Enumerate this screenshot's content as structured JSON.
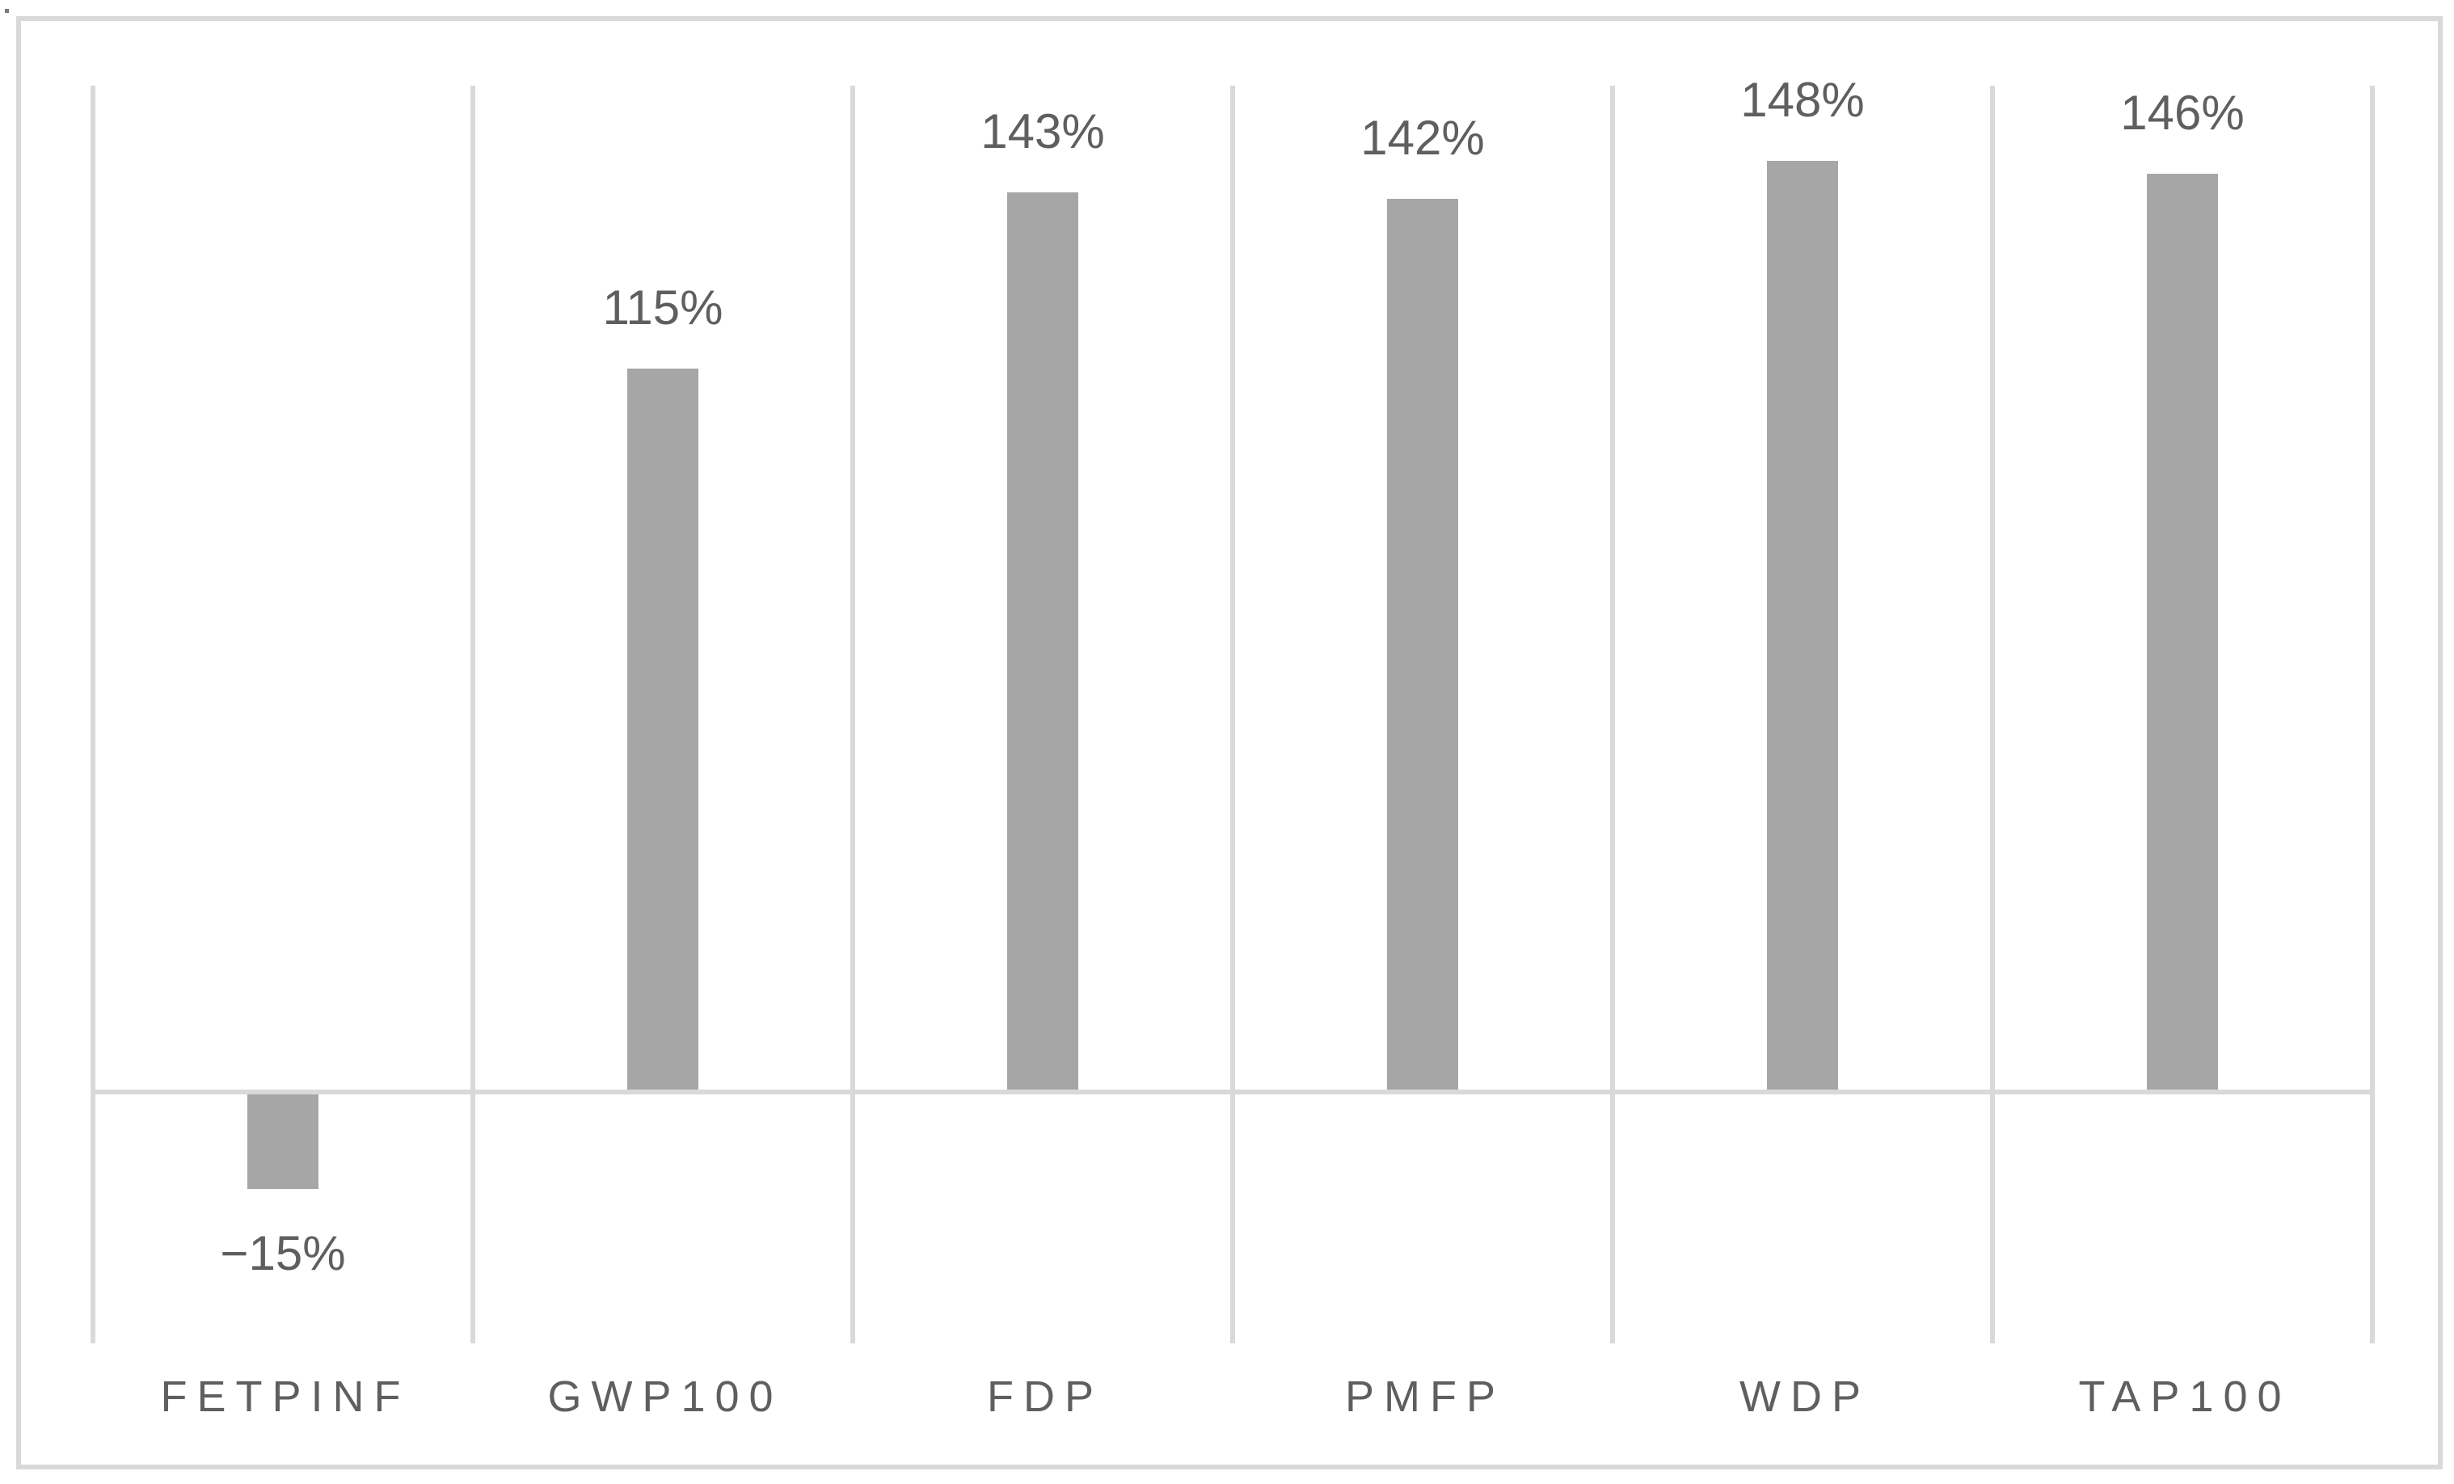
{
  "chart_data": {
    "type": "bar",
    "categories": [
      "FETPINF",
      "GWP100",
      "FDP",
      "PMFP",
      "WDP",
      "TAP100"
    ],
    "values": [
      -15,
      115,
      143,
      142,
      148,
      146
    ],
    "data_labels": [
      "−15%",
      "115%",
      "143%",
      "142%",
      "148%",
      "146%"
    ],
    "title": "",
    "xlabel": "",
    "ylabel": "",
    "ylim": [
      -40,
      160
    ],
    "grid": "vertical-category-boundaries",
    "zero_line": true,
    "legend": "none",
    "colors": {
      "bar": "#a6a6a6",
      "label_text": "#5f5f5f",
      "gridline": "#d9d9d9",
      "chart_border": "#d9d9d9",
      "background": "#ffffff"
    }
  }
}
